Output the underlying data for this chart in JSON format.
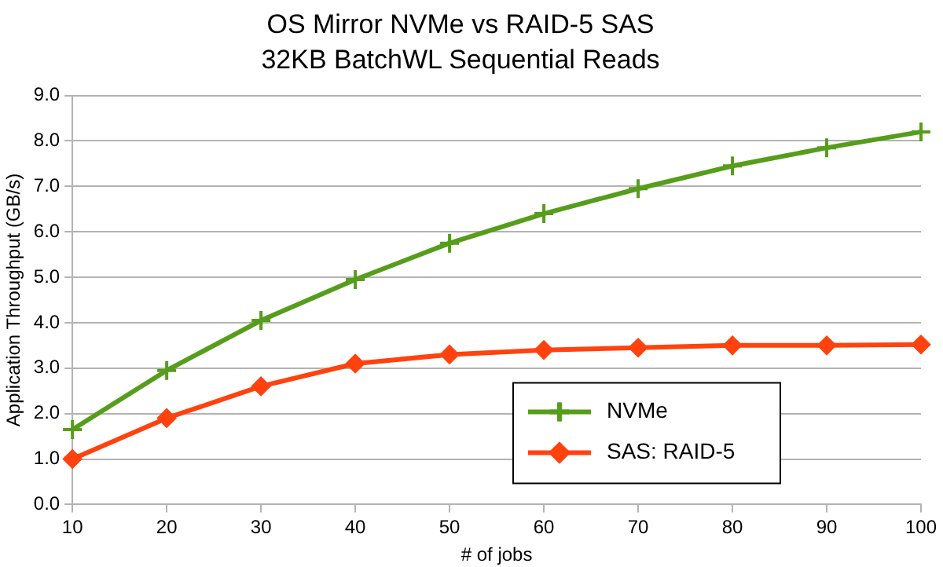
{
  "chart_data": {
    "type": "line",
    "title": "OS Mirror NVMe vs RAID-5 SAS",
    "subtitle": "32KB BatchWL Sequential Reads",
    "xlabel": "# of jobs",
    "ylabel": "Application Throughput (GB/s)",
    "x": [
      10,
      20,
      30,
      40,
      50,
      60,
      70,
      80,
      90,
      100
    ],
    "series": [
      {
        "name": "NVMe",
        "color": "#579d1c",
        "marker": "cross",
        "values": [
          1.65,
          2.95,
          4.05,
          4.95,
          5.75,
          6.4,
          6.95,
          7.45,
          7.85,
          8.2
        ]
      },
      {
        "name": "SAS: RAID-5",
        "color": "#ff420e",
        "marker": "diamond",
        "values": [
          1.0,
          1.9,
          2.6,
          3.1,
          3.3,
          3.4,
          3.45,
          3.5,
          3.5,
          3.52
        ]
      }
    ],
    "xlim": [
      10,
      100
    ],
    "xticks": [
      10,
      20,
      30,
      40,
      50,
      60,
      70,
      80,
      90,
      100
    ],
    "ylim": [
      0,
      9
    ],
    "yticks": [
      {
        "value": 0,
        "label": "0.0"
      },
      {
        "value": 1,
        "label": "1.0"
      },
      {
        "value": 2,
        "label": "2.0"
      },
      {
        "value": 3,
        "label": "3.0"
      },
      {
        "value": 4,
        "label": "4.0"
      },
      {
        "value": 5,
        "label": "5.0"
      },
      {
        "value": 6,
        "label": "6.0"
      },
      {
        "value": 7,
        "label": "7.0"
      },
      {
        "value": 8,
        "label": "8.0"
      },
      {
        "value": 9,
        "label": "9.0"
      }
    ],
    "grid": "y",
    "legend": "bottom right",
    "line_style": "solid"
  }
}
